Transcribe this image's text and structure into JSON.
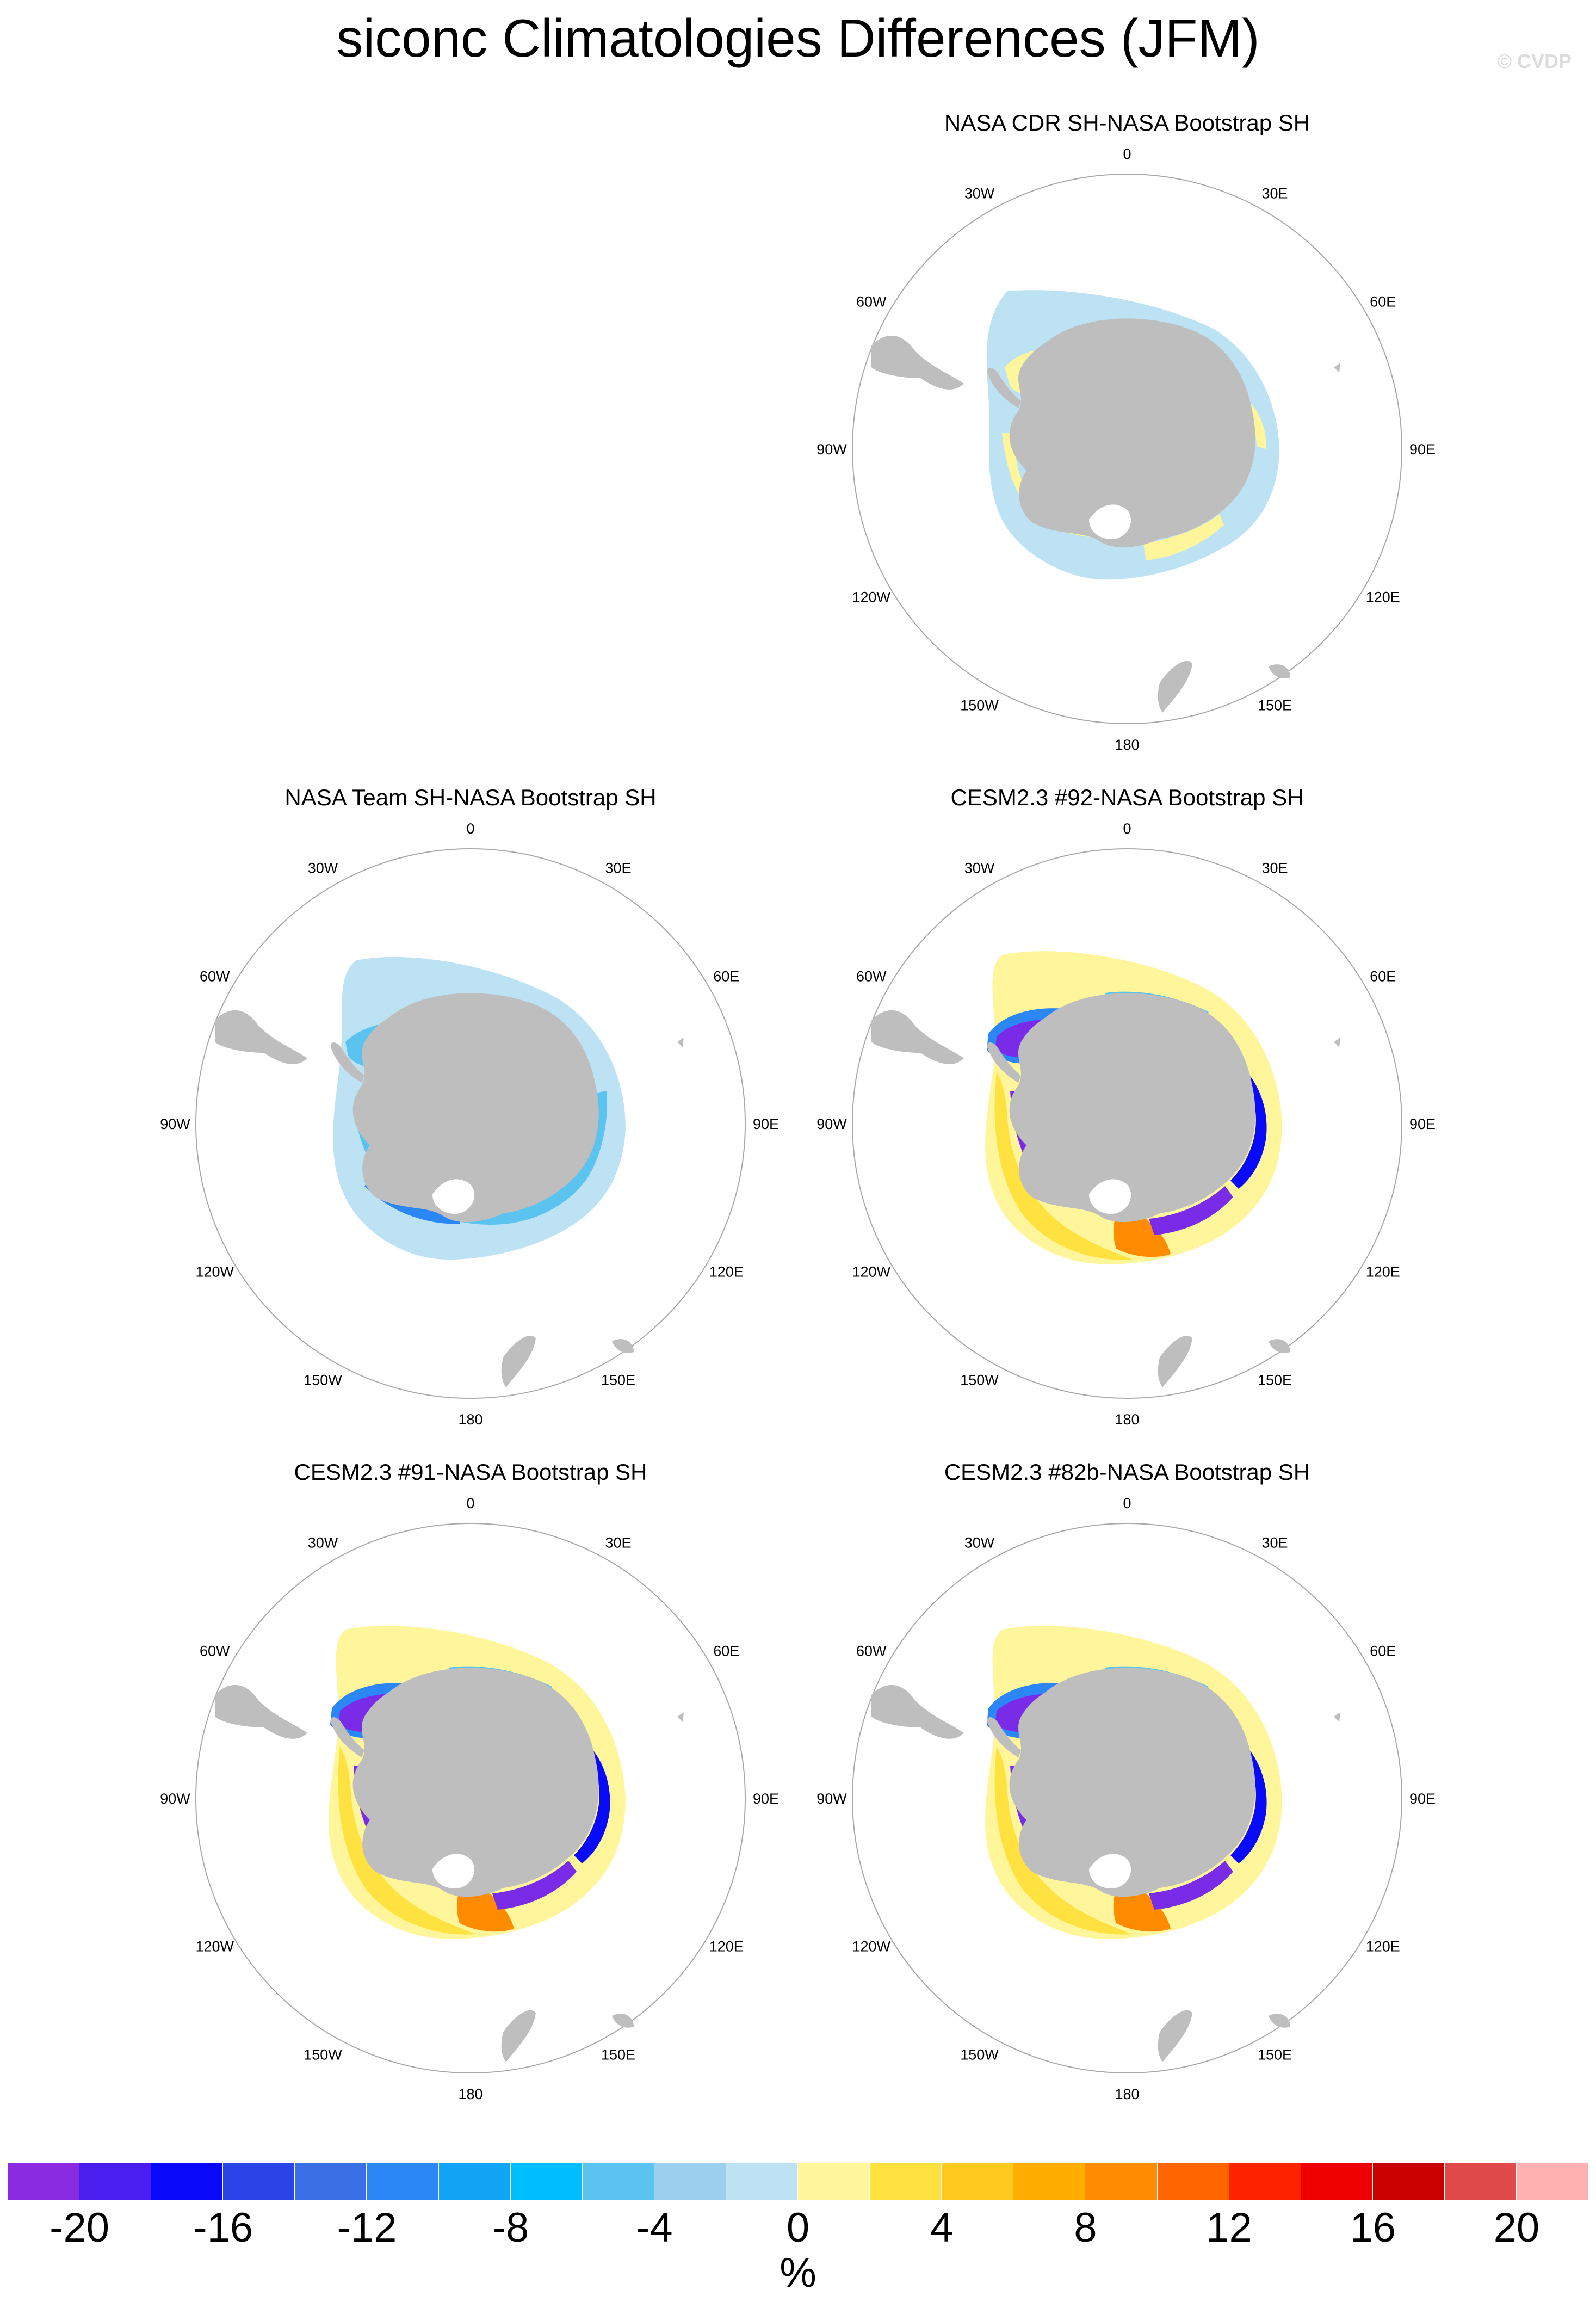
{
  "title": "siconc Climatologies Differences (JFM)",
  "watermark": "© CVDP",
  "panels": [
    {
      "title": "NASA CDR SH-NASA Bootstrap SH",
      "pattern": "cdr"
    },
    {
      "title": "NASA Team SH-NASA Bootstrap SH",
      "pattern": "team"
    },
    {
      "title": "CESM2.3 #92-NASA Bootstrap SH",
      "pattern": "model"
    },
    {
      "title": "CESM2.3 #91-NASA Bootstrap SH",
      "pattern": "model"
    },
    {
      "title": "CESM2.3 #82b-NASA Bootstrap SH",
      "pattern": "model"
    }
  ],
  "longitude_labels": [
    "0",
    "30E",
    "60E",
    "90E",
    "120E",
    "150E",
    "180",
    "150W",
    "120W",
    "90W",
    "60W",
    "30W"
  ],
  "colorbar": {
    "units": "%",
    "tick_labels": [
      "-20",
      "-16",
      "-12",
      "-8",
      "-4",
      "0",
      "4",
      "8",
      "12",
      "16",
      "20"
    ],
    "colors": [
      "#8a2be2",
      "#4b1ef0",
      "#0a0afa",
      "#2b44e8",
      "#3a6fe6",
      "#2a87f5",
      "#12a4f5",
      "#00bfff",
      "#5ac3f0",
      "#9dd0ee",
      "#bde2f4",
      "#fff59a",
      "#ffe240",
      "#ffca1e",
      "#ffae00",
      "#ff8c00",
      "#ff6600",
      "#ff2400",
      "#ee0000",
      "#c80000",
      "#e04a4a",
      "#ffb0b0"
    ]
  },
  "colors": {
    "land": "#bebebe",
    "circle": "#a8a8a8",
    "neg_light": "#bde2f4",
    "neg_mid": "#5ac3f0",
    "neg_strong": "#2a87f5",
    "neg_deep": "#0a0afa",
    "neg_max": "#7a2be8",
    "pos_light": "#fff59a",
    "pos_mid": "#ffe240",
    "pos_strong": "#ff8c00",
    "pos_max": "#ee1100"
  }
}
